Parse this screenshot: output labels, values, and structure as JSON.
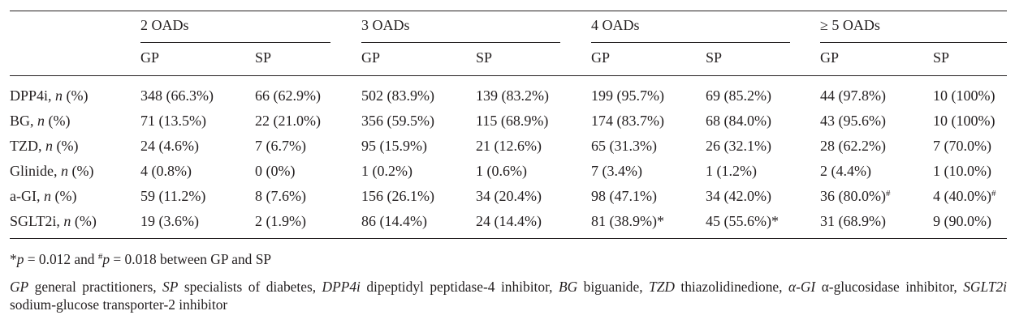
{
  "groups": [
    "2 OADs",
    "3 OADs",
    "4 OADs",
    "≥ 5 OADs"
  ],
  "subheaders": [
    "GP",
    "SP"
  ],
  "rows": [
    {
      "drug": "DPP4i, ",
      "n": "n",
      "pct": " (%)",
      "cells": [
        "348 (66.3%)",
        "66 (62.9%)",
        "502 (83.9%)",
        "139 (83.2%)",
        "199 (95.7%)",
        "69 (85.2%)",
        "44 (97.8%)",
        "10 (100%)"
      ]
    },
    {
      "drug": "BG, ",
      "n": "n",
      "pct": " (%)",
      "cells": [
        "71 (13.5%)",
        "22 (21.0%)",
        "356 (59.5%)",
        "115 (68.9%)",
        "174 (83.7%)",
        "68 (84.0%)",
        "43 (95.6%)",
        "10 (100%)"
      ]
    },
    {
      "drug": "TZD, ",
      "n": "n",
      "pct": " (%)",
      "cells": [
        "24 (4.6%)",
        "7 (6.7%)",
        "95 (15.9%)",
        "21 (12.6%)",
        "65 (31.3%)",
        "26 (32.1%)",
        "28 (62.2%)",
        "7 (70.0%)"
      ]
    },
    {
      "drug": "Glinide, ",
      "n": "n",
      "pct": " (%)",
      "cells": [
        "4 (0.8%)",
        "0 (0%)",
        "1 (0.2%)",
        "1 (0.6%)",
        "7 (3.4%)",
        "1 (1.2%)",
        "2 (4.4%)",
        "1 (10.0%)"
      ]
    },
    {
      "drug": "a-GI, ",
      "n": "n",
      "pct": " (%)",
      "cells": [
        "59 (11.2%)",
        "8 (7.6%)",
        "156 (26.1%)",
        "34 (20.4%)",
        "98 (47.1%)",
        "34 (42.0%)",
        "36 (80.0%)",
        "4 (40.0%)"
      ],
      "sup": [
        "",
        "",
        "",
        "",
        "",
        "",
        "#",
        "#"
      ]
    },
    {
      "drug": "SGLT2i, ",
      "n": "n",
      "pct": " (%)",
      "cells": [
        "19 (3.6%)",
        "2 (1.9%)",
        "86 (14.4%)",
        "24 (14.4%)",
        "81 (38.9%)*",
        "45 (55.6%)*",
        "31 (68.9%)",
        "9 (90.0%)"
      ]
    }
  ],
  "footnote": {
    "star": "*",
    "p1_var": "p",
    "p1_rest": " = 0.012 and ",
    "hash": "#",
    "p2_var": "p",
    "p2_rest": " = 0.018 between GP and SP"
  },
  "legend": [
    {
      "abbr": "GP",
      "def": " general practitioners, "
    },
    {
      "abbr": "SP",
      "def": " specialists of diabetes, "
    },
    {
      "abbr": "DPP4i",
      "def": " dipeptidyl peptidase-4 inhibitor, "
    },
    {
      "abbr": "BG",
      "def": " biguanide, "
    },
    {
      "abbr": "TZD",
      "def": " thiazolidinedione, "
    },
    {
      "abbr": "α-GI",
      "def": " α-glucosidase inhibitor, "
    },
    {
      "abbr": "SGLT2i",
      "def": " sodium-glucose transporter-2 inhibitor"
    }
  ]
}
